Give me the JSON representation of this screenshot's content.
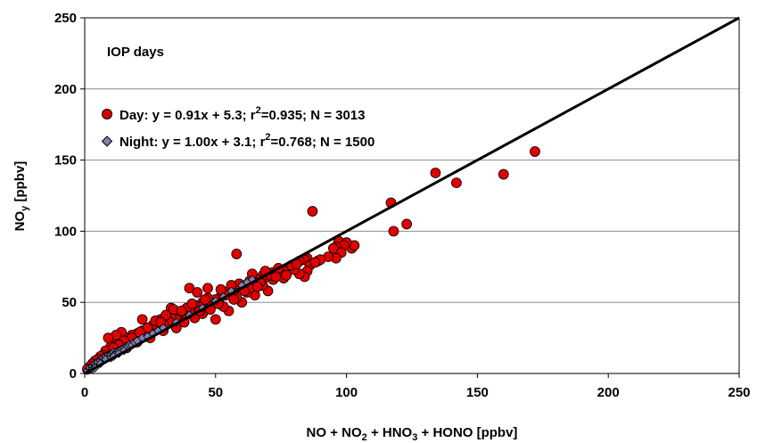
{
  "chart_data": {
    "type": "scatter",
    "xlabel": {
      "base": "NO + NO",
      "sub1": "2",
      "mid": " + HNO",
      "sub2": "3",
      "tail": " + HONO [ppbv]"
    },
    "ylabel": {
      "base": "NO",
      "sub": "y",
      "tail": " [ppbv]"
    },
    "xlim": [
      0,
      250
    ],
    "ylim": [
      0,
      250
    ],
    "xticks": [
      "0",
      "50",
      "100",
      "150",
      "200",
      "250"
    ],
    "yticks": [
      "0",
      "50",
      "100",
      "150",
      "200",
      "250"
    ],
    "grid": "horizontal",
    "annotation": "IOP days",
    "one_to_one_line": {
      "x": [
        0,
        250
      ],
      "y": [
        0,
        250
      ]
    },
    "legend": {
      "placement": "top-left",
      "entries": [
        {
          "pre": "Day:    y = 0.91x + 5.3; r",
          "sup": "2",
          "post": "=0.935; N = 3013",
          "color": "#e00000",
          "marker": "circle"
        },
        {
          "pre": "Night: y = 1.00x + 3.1; r",
          "sup": "2",
          "post": "=0.768; N = 1500",
          "color": "#7f7fb0",
          "marker": "diamond"
        }
      ]
    },
    "series": [
      {
        "name": "Day",
        "color": "#e00000",
        "marker": "circle",
        "points": [
          [
            172,
            156
          ],
          [
            160,
            140
          ],
          [
            134,
            141
          ],
          [
            142,
            134
          ],
          [
            117,
            120
          ],
          [
            118,
            100
          ],
          [
            123,
            105
          ],
          [
            87,
            114
          ],
          [
            58,
            84
          ],
          [
            102,
            88
          ],
          [
            103,
            90
          ],
          [
            100,
            92
          ],
          [
            97,
            93
          ],
          [
            99,
            90
          ],
          [
            96,
            89
          ],
          [
            95,
            88
          ],
          [
            98,
            85
          ],
          [
            96,
            81
          ],
          [
            93,
            82
          ],
          [
            89,
            79
          ],
          [
            90,
            80
          ],
          [
            85,
            81
          ],
          [
            84,
            80
          ],
          [
            82,
            79
          ],
          [
            86,
            76
          ],
          [
            88,
            78
          ],
          [
            85,
            72
          ],
          [
            84,
            68
          ],
          [
            82,
            70
          ],
          [
            80,
            75
          ],
          [
            78,
            73
          ],
          [
            76,
            72
          ],
          [
            75,
            70
          ],
          [
            72,
            71
          ],
          [
            70,
            68
          ],
          [
            68,
            69
          ],
          [
            66,
            66
          ],
          [
            65,
            64
          ],
          [
            63,
            65
          ],
          [
            62,
            60
          ],
          [
            60,
            62
          ],
          [
            58,
            60
          ],
          [
            57,
            56
          ],
          [
            55,
            58
          ],
          [
            54,
            55
          ],
          [
            52,
            54
          ],
          [
            50,
            52
          ],
          [
            48,
            50
          ],
          [
            47,
            53
          ],
          [
            45,
            50
          ],
          [
            44,
            47
          ],
          [
            42,
            48
          ],
          [
            40,
            44
          ],
          [
            39,
            46
          ],
          [
            38,
            41
          ],
          [
            36,
            43
          ],
          [
            35,
            38
          ],
          [
            33,
            40
          ],
          [
            32,
            37
          ],
          [
            30,
            35
          ],
          [
            29,
            38
          ],
          [
            28,
            33
          ],
          [
            27,
            31
          ],
          [
            26,
            34
          ],
          [
            25,
            29
          ],
          [
            24,
            31
          ],
          [
            23,
            27
          ],
          [
            22,
            30
          ],
          [
            21,
            26
          ],
          [
            20,
            28
          ],
          [
            19,
            24
          ],
          [
            18,
            27
          ],
          [
            17,
            22
          ],
          [
            16,
            25
          ],
          [
            15,
            21
          ],
          [
            14,
            23
          ],
          [
            13,
            19
          ],
          [
            12,
            22
          ],
          [
            11,
            17
          ],
          [
            10,
            19
          ],
          [
            9,
            15
          ],
          [
            8,
            16
          ],
          [
            7,
            13
          ],
          [
            6,
            12
          ],
          [
            5,
            10
          ],
          [
            4,
            9
          ],
          [
            3,
            7
          ],
          [
            2,
            5
          ],
          [
            1,
            3
          ],
          [
            40,
            60
          ],
          [
            43,
            57
          ],
          [
            47,
            60
          ],
          [
            33,
            46
          ],
          [
            34,
            45
          ],
          [
            22,
            38
          ],
          [
            27,
            37
          ],
          [
            14,
            29
          ],
          [
            12,
            27
          ],
          [
            9,
            25
          ],
          [
            50,
            38
          ],
          [
            55,
            44
          ],
          [
            60,
            50
          ],
          [
            65,
            55
          ],
          [
            70,
            58
          ],
          [
            53,
            47
          ],
          [
            45,
            42
          ],
          [
            38,
            36
          ],
          [
            30,
            30
          ],
          [
            25,
            25
          ],
          [
            20,
            22
          ],
          [
            16,
            18
          ],
          [
            35,
            32
          ],
          [
            42,
            39
          ],
          [
            48,
            45
          ],
          [
            58,
            53
          ],
          [
            62,
            57
          ],
          [
            68,
            62
          ],
          [
            72,
            66
          ],
          [
            76,
            67
          ],
          [
            80,
            73
          ],
          [
            63,
            60
          ],
          [
            67,
            64
          ],
          [
            71,
            69
          ],
          [
            74,
            74
          ],
          [
            69,
            72
          ],
          [
            59,
            63
          ],
          [
            56,
            62
          ],
          [
            52,
            59
          ],
          [
            46,
            52
          ],
          [
            41,
            49
          ],
          [
            37,
            44
          ],
          [
            31,
            41
          ],
          [
            29,
            36
          ],
          [
            24,
            32
          ],
          [
            21,
            29
          ],
          [
            18,
            25
          ],
          [
            15,
            23
          ],
          [
            13,
            20
          ],
          [
            11,
            18
          ],
          [
            64,
            70
          ],
          [
            79,
            76
          ],
          [
            81,
            77
          ],
          [
            77,
            69
          ],
          [
            73,
            68
          ],
          [
            66,
            61
          ],
          [
            61,
            58
          ],
          [
            57,
            52
          ],
          [
            51,
            49
          ],
          [
            44,
            44
          ]
        ]
      },
      {
        "name": "Night",
        "color": "#7f7fb0",
        "marker": "diamond",
        "points": [
          [
            1,
            2
          ],
          [
            2,
            3
          ],
          [
            2,
            4
          ],
          [
            3,
            4
          ],
          [
            3,
            5
          ],
          [
            4,
            6
          ],
          [
            4,
            7
          ],
          [
            5,
            7
          ],
          [
            5,
            8
          ],
          [
            6,
            9
          ],
          [
            7,
            10
          ],
          [
            7,
            11
          ],
          [
            8,
            11
          ],
          [
            8,
            12
          ],
          [
            9,
            12
          ],
          [
            9,
            13
          ],
          [
            10,
            14
          ],
          [
            10,
            13
          ],
          [
            11,
            15
          ],
          [
            12,
            15
          ],
          [
            12,
            14
          ],
          [
            13,
            16
          ],
          [
            14,
            17
          ],
          [
            15,
            18
          ],
          [
            16,
            19
          ],
          [
            17,
            20
          ],
          [
            18,
            20
          ],
          [
            19,
            22
          ],
          [
            20,
            23
          ],
          [
            22,
            25
          ],
          [
            24,
            26
          ],
          [
            26,
            28
          ],
          [
            28,
            30
          ],
          [
            30,
            32
          ],
          [
            35,
            36
          ],
          [
            40,
            41
          ],
          [
            45,
            46
          ],
          [
            50,
            51
          ],
          [
            53,
            54
          ],
          [
            56,
            58
          ],
          [
            60,
            62
          ],
          [
            62,
            64
          ],
          [
            64,
            66
          ],
          [
            3,
            3
          ],
          [
            4,
            4
          ],
          [
            6,
            7
          ],
          [
            8,
            10
          ],
          [
            10,
            11
          ],
          [
            11,
            12
          ],
          [
            13,
            14
          ],
          [
            15,
            16
          ]
        ]
      }
    ]
  }
}
